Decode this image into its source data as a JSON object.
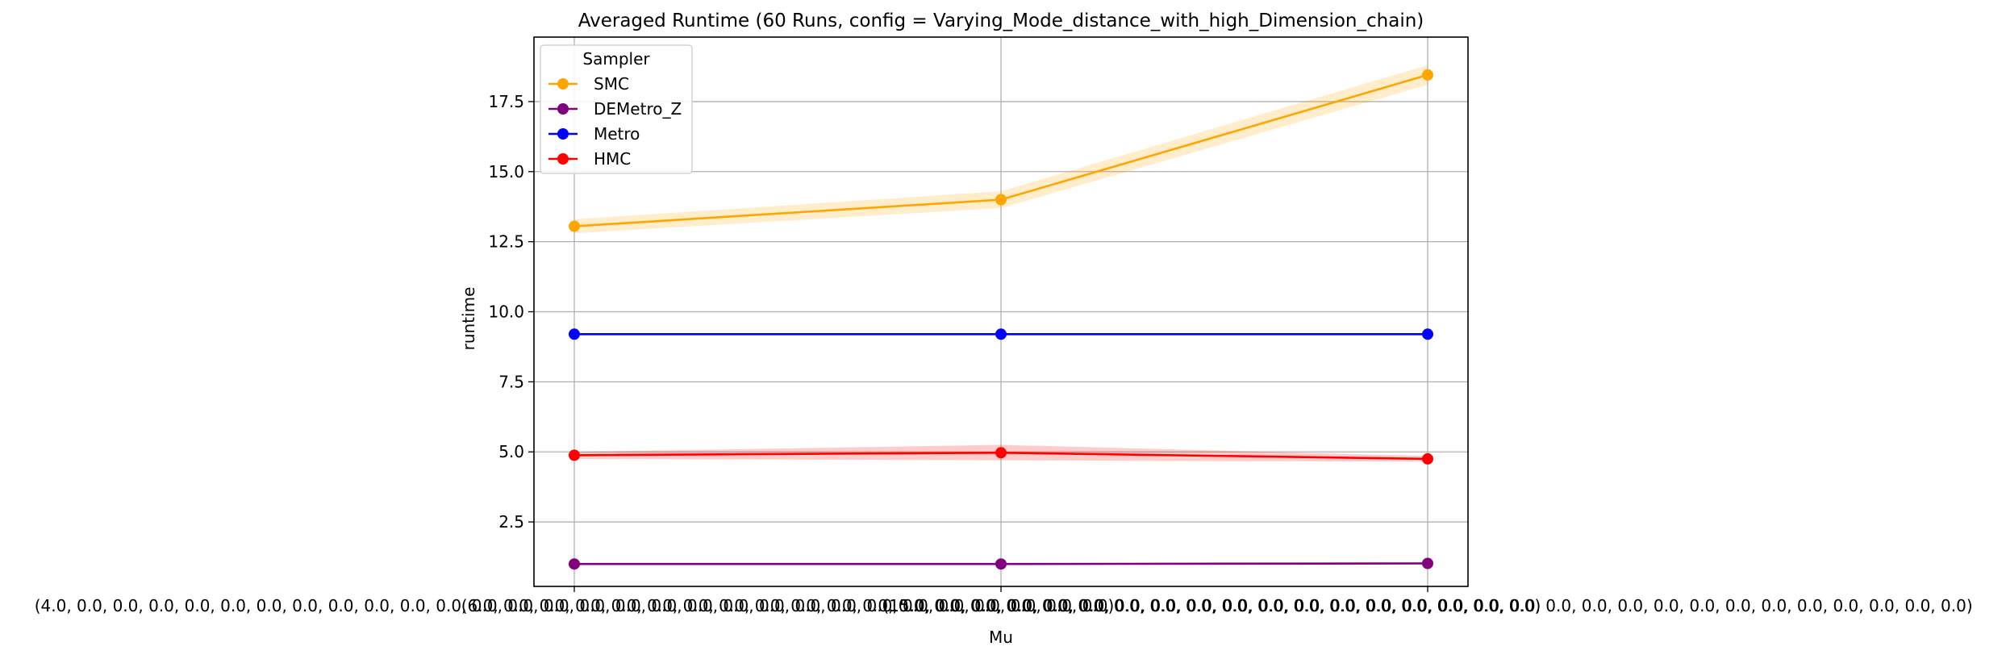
{
  "chart_data": {
    "type": "line",
    "title": "Averaged Runtime (60 Runs, config = Varying_Mode_distance_with_high_Dimension_chain)",
    "xlabel": "Mu",
    "ylabel": "runtime",
    "categories": [
      "(4.0, 0.0, 0.0, 0.0, 0.0, 0.0, 0.0, 0.0, 0.0, 0.0, 0.0, 0.0, 0.0, 0.0, 0.0, 0.0, 0.0, 0.0, 0.0, 0.0, 0.0, 0.0, 0.0, 0.0, 0.0, 0.0, 0.0, 0.0, 0.0, 0.0)",
      "(6.0, 0.0, 0.0, 0.0, 0.0, 0.0, 0.0, 0.0, 0.0, 0.0, 0.0, 0.0, 0.0, 0.0, 0.0, 0.0, 0.0, 0.0, 0.0, 0.0, 0.0, 0.0, 0.0, 0.0, 0.0, 0.0, 0.0, 0.0, 0.0, 0.0)",
      "(15.0, 0.0, 0.0, 0.0, 0.0, 0.0, 0.0, 0.0, 0.0, 0.0, 0.0, 0.0, 0.0, 0.0, 0.0, 0.0, 0.0, 0.0, 0.0, 0.0, 0.0, 0.0, 0.0, 0.0, 0.0, 0.0, 0.0, 0.0, 0.0, 0.0)"
    ],
    "ylim": [
      0.2,
      19.8
    ],
    "yticks": [
      "2.5",
      "5.0",
      "7.5",
      "10.0",
      "12.5",
      "15.0",
      "17.5"
    ],
    "grid": true,
    "legend": {
      "title": "Sampler",
      "placement": "upper-left"
    },
    "series": [
      {
        "name": "SMC",
        "color": "#ffa500",
        "values": [
          13.05,
          14.0,
          18.45
        ],
        "band_low": [
          12.8,
          13.7,
          18.1
        ],
        "band_high": [
          13.3,
          14.3,
          18.8
        ]
      },
      {
        "name": "DEMetro_Z",
        "color": "#800080",
        "values": [
          1.0,
          1.0,
          1.02
        ],
        "band_low": [
          0.97,
          0.97,
          0.98
        ],
        "band_high": [
          1.03,
          1.03,
          1.06
        ]
      },
      {
        "name": "Metro",
        "color": "#0000ff",
        "values": [
          9.2,
          9.2,
          9.2
        ],
        "band_low": [
          9.17,
          9.17,
          9.17
        ],
        "band_high": [
          9.23,
          9.23,
          9.23
        ]
      },
      {
        "name": "HMC",
        "color": "#ff0000",
        "values": [
          4.88,
          4.97,
          4.75
        ],
        "band_low": [
          4.75,
          4.7,
          4.65
        ],
        "band_high": [
          5.0,
          5.25,
          4.85
        ]
      }
    ]
  }
}
